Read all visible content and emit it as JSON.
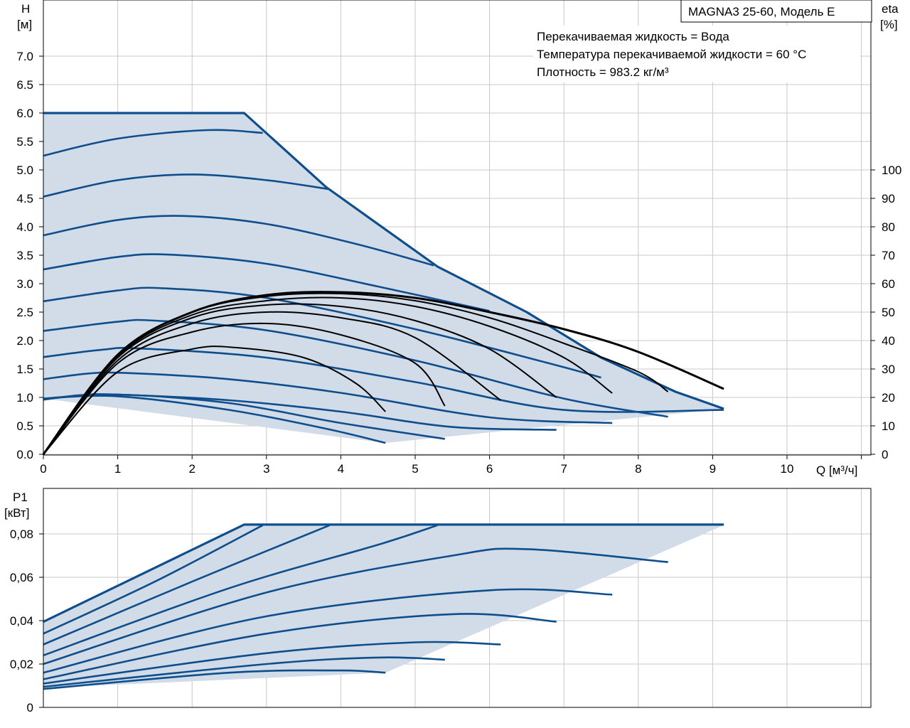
{
  "chart_data": [
    {
      "type": "line",
      "title": "MAGNA3 25-60, Модель E",
      "info": [
        "Перекачиваемая жидкость = Вода",
        "Температура перекачиваемой жидкости = 60 °C",
        "Плотность = 983.2 кг/м³"
      ],
      "ylabel_name": "H",
      "ylabel_unit": "[м]",
      "y2label_name": "eta",
      "y2label_unit": "[%]",
      "xlabel": "Q [м³/ч]",
      "xlim": [
        0,
        11
      ],
      "ylim": [
        0,
        7.5
      ],
      "y2lim": [
        0,
        100
      ],
      "x_ticks": [
        "0",
        "1",
        "2",
        "3",
        "4",
        "5",
        "6",
        "7",
        "8",
        "9",
        "10"
      ],
      "y_ticks": [
        "0.0",
        "0.5",
        "1.0",
        "1.5",
        "2.0",
        "2.5",
        "3.0",
        "3.5",
        "4.0",
        "4.5",
        "5.0",
        "5.5",
        "6.0",
        "6.5",
        "7.0"
      ],
      "y2_ticks": [
        "0",
        "10",
        "20",
        "30",
        "40",
        "50",
        "60",
        "70",
        "80",
        "90",
        "100"
      ],
      "grid": true,
      "colors": {
        "curve": "#0f4e8c",
        "region": "#d1dce8",
        "efficiency": "#000000",
        "grid": "#c8c8c8"
      },
      "operating_envelope": [
        [
          0,
          6.0
        ],
        [
          2.7,
          6.0
        ],
        [
          3.8,
          4.7
        ],
        [
          5.3,
          3.3
        ],
        [
          6.5,
          2.5
        ],
        [
          7.5,
          1.7
        ],
        [
          8.5,
          1.1
        ],
        [
          9.15,
          0.8
        ],
        [
          4.6,
          0.2
        ],
        [
          0,
          0.98
        ]
      ],
      "series": [
        {
          "values": [
            [
              0,
              5.25
            ],
            [
              1,
              5.55
            ],
            [
              2.2,
              5.7
            ],
            [
              2.95,
              5.65
            ]
          ]
        },
        {
          "values": [
            [
              0,
              4.53
            ],
            [
              1,
              4.82
            ],
            [
              2.0,
              4.92
            ],
            [
              3.0,
              4.82
            ],
            [
              3.85,
              4.66
            ]
          ]
        },
        {
          "values": [
            [
              0,
              3.85
            ],
            [
              1,
              4.12
            ],
            [
              1.9,
              4.19
            ],
            [
              3.0,
              4.05
            ],
            [
              4.2,
              3.7
            ],
            [
              5.25,
              3.32
            ]
          ]
        },
        {
          "values": [
            [
              0,
              3.25
            ],
            [
              1,
              3.47
            ],
            [
              1.7,
              3.51
            ],
            [
              3.0,
              3.35
            ],
            [
              4.5,
              2.95
            ],
            [
              6.0,
              2.52
            ]
          ]
        },
        {
          "values": [
            [
              0,
              2.69
            ],
            [
              1,
              2.88
            ],
            [
              1.6,
              2.92
            ],
            [
              3.0,
              2.75
            ],
            [
              5.0,
              2.2
            ],
            [
              6.8,
              1.6
            ],
            [
              7.5,
              1.35
            ]
          ]
        },
        {
          "values": [
            [
              0,
              2.17
            ],
            [
              1,
              2.33
            ],
            [
              1.5,
              2.35
            ],
            [
              3.0,
              2.18
            ],
            [
              5.0,
              1.65
            ],
            [
              7.0,
              0.98
            ],
            [
              8.4,
              0.66
            ]
          ]
        },
        {
          "values": [
            [
              0,
              1.71
            ],
            [
              0.8,
              1.84
            ],
            [
              1.3,
              1.86
            ],
            [
              3.0,
              1.7
            ],
            [
              5.0,
              1.27
            ],
            [
              7.0,
              0.78
            ],
            [
              9.15,
              0.78
            ]
          ]
        },
        {
          "values": [
            [
              0,
              1.32
            ],
            [
              0.6,
              1.42
            ],
            [
              1.1,
              1.43
            ],
            [
              2.5,
              1.32
            ],
            [
              4.0,
              1.08
            ],
            [
              6.0,
              0.65
            ],
            [
              7.65,
              0.55
            ]
          ]
        },
        {
          "values": [
            [
              0,
              0.96
            ],
            [
              0.5,
              1.04
            ],
            [
              1.0,
              1.05
            ],
            [
              2.5,
              0.95
            ],
            [
              4.0,
              0.75
            ],
            [
              5.5,
              0.48
            ],
            [
              6.9,
              0.43
            ]
          ]
        },
        {
          "values": [
            [
              0,
              0.98
            ],
            [
              1,
              1.05
            ],
            [
              2.5,
              0.9
            ],
            [
              4.0,
              0.55
            ],
            [
              5.4,
              0.27
            ]
          ]
        },
        {
          "values": [
            [
              0,
              0.98
            ],
            [
              1,
              1.02
            ],
            [
              2.5,
              0.78
            ],
            [
              3.8,
              0.45
            ],
            [
              4.6,
              0.2
            ]
          ]
        }
      ],
      "efficiency_series": [
        {
          "values": [
            [
              0,
              0
            ],
            [
              1,
              35
            ],
            [
              2,
              50
            ],
            [
              3,
              56
            ],
            [
              4,
              57
            ],
            [
              5,
              55
            ],
            [
              6,
              50
            ],
            [
              7,
              44
            ],
            [
              8,
              36
            ],
            [
              9.15,
              23
            ]
          ]
        },
        {
          "values": [
            [
              0,
              0
            ],
            [
              1,
              35
            ],
            [
              2,
              50
            ],
            [
              3,
              55.5
            ],
            [
              4,
              56.5
            ],
            [
              5,
              54
            ],
            [
              6,
              48
            ],
            [
              7,
              39
            ],
            [
              8,
              29
            ],
            [
              8.4,
              22
            ]
          ]
        },
        {
          "values": [
            [
              0,
              0
            ],
            [
              1,
              34.5
            ],
            [
              2,
              49
            ],
            [
              3,
              54
            ],
            [
              4,
              55
            ],
            [
              5,
              52
            ],
            [
              6,
              45
            ],
            [
              7,
              34
            ],
            [
              7.65,
              21.5
            ]
          ]
        },
        {
          "values": [
            [
              0,
              0
            ],
            [
              1,
              34
            ],
            [
              2,
              48
            ],
            [
              3,
              52.5
            ],
            [
              4,
              52
            ],
            [
              5,
              47
            ],
            [
              6,
              37
            ],
            [
              6.9,
              20
            ]
          ]
        },
        {
          "values": [
            [
              0,
              0
            ],
            [
              1,
              33
            ],
            [
              2,
              46
            ],
            [
              3,
              50
            ],
            [
              4,
              48
            ],
            [
              5,
              41
            ],
            [
              6.15,
              19
            ]
          ]
        },
        {
          "values": [
            [
              0,
              0
            ],
            [
              1,
              32
            ],
            [
              2,
              43
            ],
            [
              3,
              46
            ],
            [
              4,
              42
            ],
            [
              5,
              32
            ],
            [
              5.4,
              17
            ]
          ]
        },
        {
          "values": [
            [
              0,
              0
            ],
            [
              1,
              29
            ],
            [
              2,
              37
            ],
            [
              2.6,
              37.5
            ],
            [
              3.5,
              34
            ],
            [
              4.2,
              25
            ],
            [
              4.6,
              15
            ]
          ]
        }
      ]
    },
    {
      "type": "line",
      "ylabel_name": "P1",
      "ylabel_unit": "[кВт]",
      "xlim": [
        0,
        11
      ],
      "ylim": [
        0,
        0.085
      ],
      "y_ticks": [
        "0",
        "0,02",
        "0,04",
        "0,06",
        "0,08"
      ],
      "grid": true,
      "operating_envelope": [
        [
          0,
          0.04
        ],
        [
          2.7,
          0.084
        ],
        [
          9.15,
          0.084
        ],
        [
          4.6,
          0.016
        ],
        [
          0,
          0.009
        ]
      ],
      "series": [
        {
          "values": [
            [
              0,
              0.0395
            ],
            [
              2.7,
              0.0843
            ],
            [
              9.15,
              0.0843
            ]
          ]
        },
        {
          "values": [
            [
              0,
              0.034
            ],
            [
              1.5,
              0.058
            ],
            [
              2.95,
              0.084
            ]
          ]
        },
        {
          "values": [
            [
              0,
              0.029
            ],
            [
              2.0,
              0.058
            ],
            [
              3.85,
              0.084
            ]
          ]
        },
        {
          "values": [
            [
              0,
              0.024
            ],
            [
              2.5,
              0.055
            ],
            [
              4.5,
              0.075
            ],
            [
              5.3,
              0.084
            ]
          ]
        },
        {
          "values": [
            [
              0,
              0.02
            ],
            [
              3.0,
              0.053
            ],
            [
              5.5,
              0.07
            ],
            [
              6.5,
              0.073
            ],
            [
              8.4,
              0.067
            ]
          ]
        },
        {
          "values": [
            [
              0,
              0.016
            ],
            [
              3.0,
              0.042
            ],
            [
              6.0,
              0.054
            ],
            [
              7.65,
              0.052
            ]
          ]
        },
        {
          "values": [
            [
              0,
              0.013
            ],
            [
              3.0,
              0.034
            ],
            [
              5.5,
              0.043
            ],
            [
              6.9,
              0.0395
            ]
          ]
        },
        {
          "values": [
            [
              0,
              0.011
            ],
            [
              3.0,
              0.025
            ],
            [
              5.0,
              0.03
            ],
            [
              6.15,
              0.029
            ]
          ]
        },
        {
          "values": [
            [
              0,
              0.0095
            ],
            [
              3.0,
              0.02
            ],
            [
              4.5,
              0.023
            ],
            [
              5.4,
              0.022
            ]
          ]
        },
        {
          "values": [
            [
              0,
              0.0085
            ],
            [
              2.5,
              0.016
            ],
            [
              4.0,
              0.017
            ],
            [
              4.6,
              0.016
            ]
          ]
        }
      ]
    }
  ]
}
